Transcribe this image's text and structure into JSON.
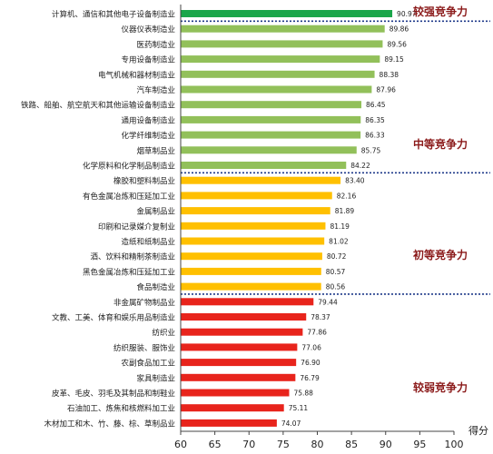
{
  "chart_data": {
    "type": "bar",
    "orientation": "horizontal",
    "xlabel": "得分",
    "xlim": [
      60,
      100
    ],
    "xticks": [
      60,
      65,
      70,
      75,
      80,
      85,
      90,
      95,
      100
    ],
    "grid": false,
    "legend": "none",
    "categories": [
      "计算机、通信和其他电子设备制造业",
      "仪器仪表制造业",
      "医药制造业",
      "专用设备制造业",
      "电气机械和器材制造业",
      "汽车制造业",
      "铁路、船舶、航空航天和其他运输设备制造业",
      "通用设备制造业",
      "化学纤维制造业",
      "烟草制品业",
      "化学原料和化学制品制造业",
      "橡胶和塑料制品业",
      "有色金属冶炼和压延加工业",
      "金属制品业",
      "印刷和记录媒介复制业",
      "造纸和纸制品业",
      "酒、饮料和精制茶制造业",
      "黑色金属冶炼和压延加工业",
      "食品制造业",
      "非金属矿物制品业",
      "文教、工美、体育和娱乐用品制造业",
      "纺织业",
      "纺织服装、服饰业",
      "农副食品加工业",
      "家具制造业",
      "皮革、毛皮、羽毛及其制品和制鞋业",
      "石油加工、炼焦和核燃料加工业",
      "木材加工和木、竹、藤、棕、草制品业"
    ],
    "values": [
      90.97,
      89.86,
      89.56,
      89.15,
      88.38,
      87.96,
      86.45,
      86.35,
      86.33,
      85.75,
      84.22,
      83.4,
      82.16,
      81.89,
      81.19,
      81.02,
      80.72,
      80.57,
      80.56,
      79.44,
      78.37,
      77.86,
      77.06,
      76.9,
      76.79,
      75.88,
      75.11,
      74.07
    ],
    "value_labels": [
      "90.97",
      "89.86",
      "89.56",
      "89.15",
      "88.38",
      "87.96",
      "86.45",
      "86.35",
      "86.33",
      "85.75",
      "84.22",
      "83.40",
      "82.16",
      "81.89",
      "81.19",
      "81.02",
      "80.72",
      "80.57",
      "80.56",
      "79.44",
      "78.37",
      "77.86",
      "77.06",
      "76.90",
      "76.79",
      "75.88",
      "75.11",
      "74.07"
    ],
    "tiers": [
      {
        "name": "较强竞争力",
        "start": 0,
        "end": 0,
        "color": "#1aa64a"
      },
      {
        "name": "中等竞争力",
        "start": 1,
        "end": 10,
        "color": "#92c05a"
      },
      {
        "name": "初等竞争力",
        "start": 11,
        "end": 18,
        "color": "#ffc000"
      },
      {
        "name": "较弱竞争力",
        "start": 19,
        "end": 27,
        "color": "#e8241c"
      }
    ]
  }
}
